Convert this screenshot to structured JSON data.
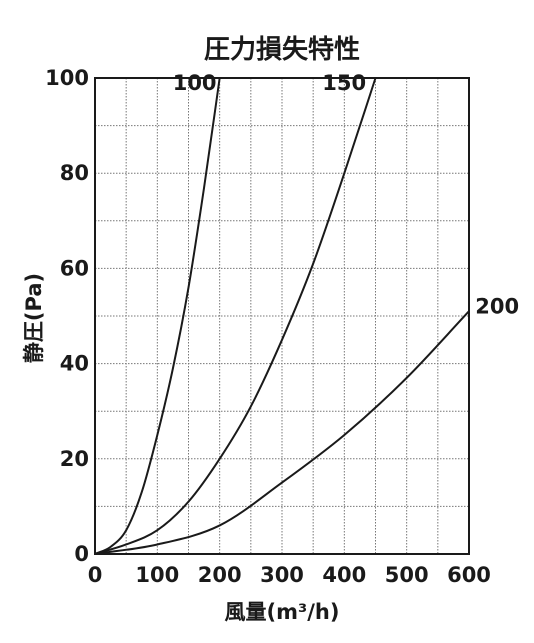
{
  "chart_data": {
    "type": "line",
    "title": "圧力損失特性",
    "xlabel": "風量(m³/h)",
    "ylabel": "静圧(Pa)",
    "xlim": [
      0,
      600
    ],
    "ylim": [
      0,
      100
    ],
    "x_ticks": [
      "0",
      "100",
      "200",
      "300",
      "400",
      "500",
      "600"
    ],
    "y_ticks": [
      "0",
      "20",
      "40",
      "60",
      "80",
      "100"
    ],
    "grid": true,
    "series": [
      {
        "name": "100",
        "x": [
          0,
          25,
          50,
          75,
          100,
          125,
          150,
          175,
          200
        ],
        "values": [
          0,
          1.5,
          5,
          13,
          25,
          39,
          56,
          77,
          100
        ]
      },
      {
        "name": "150",
        "x": [
          0,
          50,
          100,
          150,
          200,
          250,
          300,
          350,
          400,
          450
        ],
        "values": [
          0,
          2,
          5,
          11,
          20,
          31,
          45,
          61,
          80,
          100
        ]
      },
      {
        "name": "200",
        "x": [
          0,
          100,
          200,
          300,
          400,
          500,
          600
        ],
        "values": [
          0,
          2,
          6,
          15,
          25,
          37,
          51
        ]
      }
    ],
    "series_label_text": [
      "100",
      "150",
      "200"
    ]
  }
}
